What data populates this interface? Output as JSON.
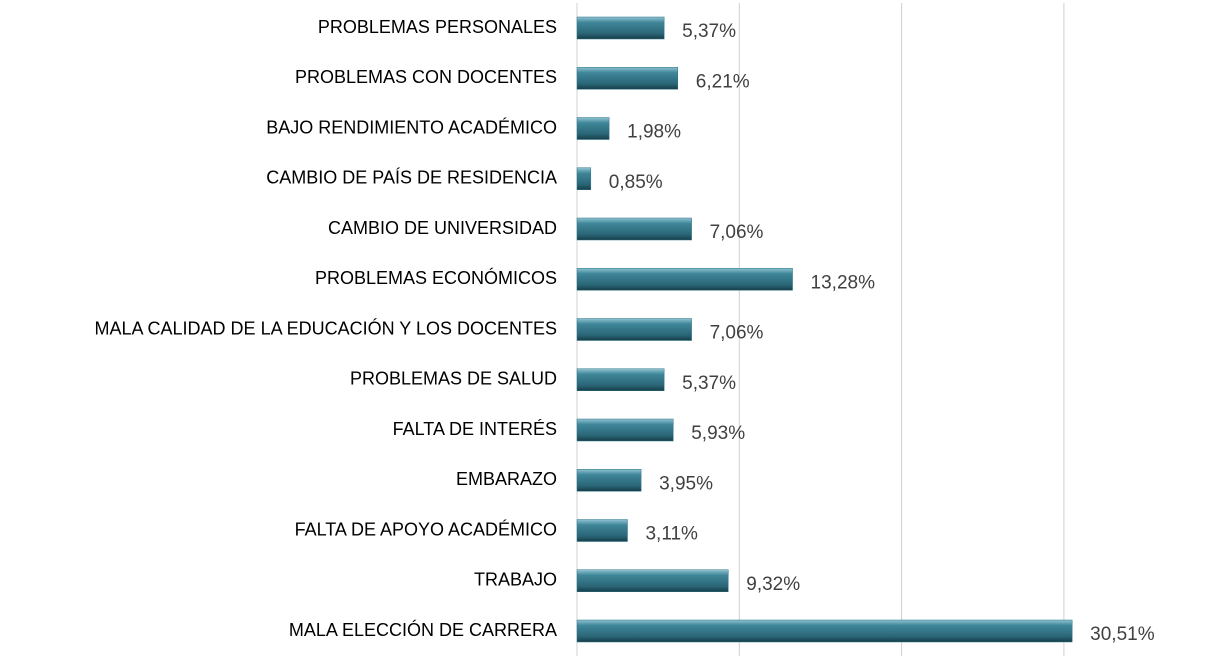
{
  "chart_data": {
    "type": "bar",
    "orientation": "horizontal",
    "categories": [
      "PROBLEMAS PERSONALES",
      "PROBLEMAS CON DOCENTES",
      "BAJO RENDIMIENTO ACADÉMICO",
      "CAMBIO DE PAÍS DE RESIDENCIA",
      "CAMBIO DE UNIVERSIDAD",
      "PROBLEMAS ECONÓMICOS",
      "MALA CALIDAD DE LA EDUCACIÓN Y LOS DOCENTES",
      "PROBLEMAS DE SALUD",
      "FALTA DE INTERÉS",
      "EMBARAZO",
      "FALTA DE APOYO ACADÉMICO",
      "TRABAJO",
      "MALA ELECCIÓN DE CARRERA"
    ],
    "values": [
      5.37,
      6.21,
      1.98,
      0.85,
      7.06,
      13.28,
      7.06,
      5.37,
      5.93,
      3.95,
      3.11,
      9.32,
      30.51
    ],
    "value_labels": [
      "5,37%",
      "6,21%",
      "1,98%",
      "0,85%",
      "7,06%",
      "13,28%",
      "7,06%",
      "5,37%",
      "5,93%",
      "3,95%",
      "3,11%",
      "9,32%",
      "30,51%"
    ],
    "color": "#2f7487",
    "xlim": [
      0,
      35
    ],
    "xticks": [
      0,
      10,
      20,
      30
    ],
    "grid": true
  }
}
